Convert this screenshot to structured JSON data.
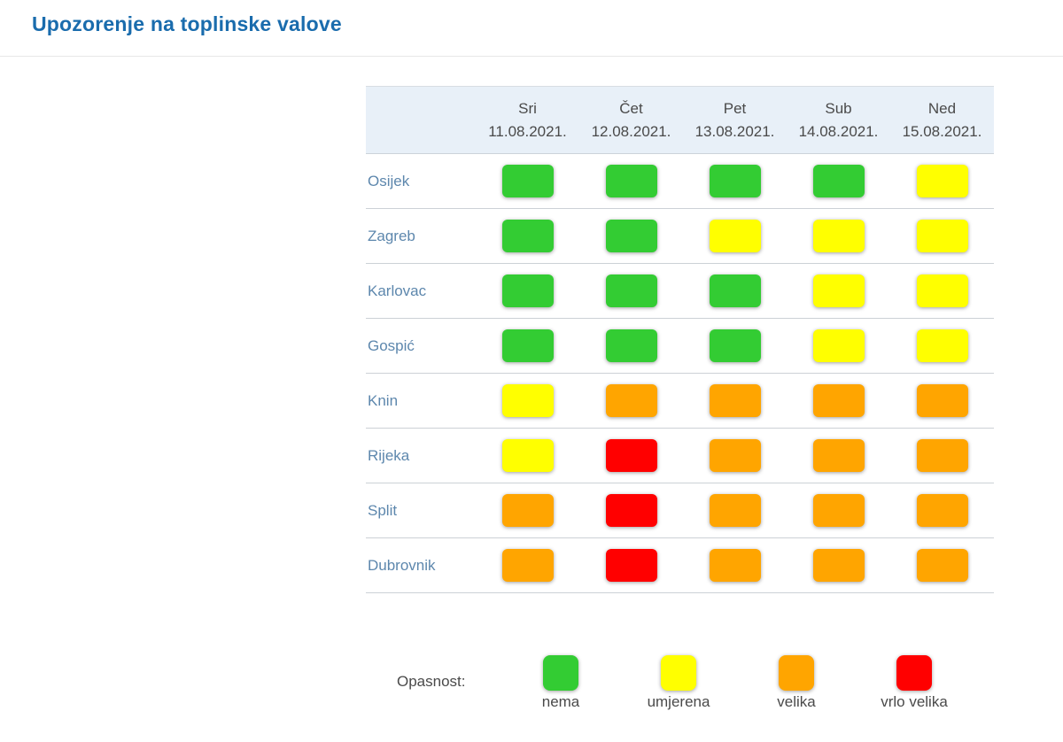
{
  "page": {
    "title": "Upozorenje na toplinske valove"
  },
  "colors": {
    "title_blue": "#1a6cad",
    "header_background": "#e8f0f8",
    "city_link_blue": "#5d87ad",
    "nema": "#33cc33",
    "umjerena": "#ffff00",
    "velika": "#ffa500",
    "vrlo_velika": "#ff0000"
  },
  "table": {
    "days": [
      {
        "name": "Sri",
        "date": "11.08.2021."
      },
      {
        "name": "Čet",
        "date": "12.08.2021."
      },
      {
        "name": "Pet",
        "date": "13.08.2021."
      },
      {
        "name": "Sub",
        "date": "14.08.2021."
      },
      {
        "name": "Ned",
        "date": "15.08.2021."
      }
    ],
    "rows": [
      {
        "city": "Osijek",
        "levels": [
          "nema",
          "nema",
          "nema",
          "nema",
          "umjerena"
        ]
      },
      {
        "city": "Zagreb",
        "levels": [
          "nema",
          "nema",
          "umjerena",
          "umjerena",
          "umjerena"
        ]
      },
      {
        "city": "Karlovac",
        "levels": [
          "nema",
          "nema",
          "nema",
          "umjerena",
          "umjerena"
        ]
      },
      {
        "city": "Gospić",
        "levels": [
          "nema",
          "nema",
          "nema",
          "umjerena",
          "umjerena"
        ]
      },
      {
        "city": "Knin",
        "levels": [
          "umjerena",
          "velika",
          "velika",
          "velika",
          "velika"
        ]
      },
      {
        "city": "Rijeka",
        "levels": [
          "umjerena",
          "vrlo velika",
          "velika",
          "velika",
          "velika"
        ]
      },
      {
        "city": "Split",
        "levels": [
          "velika",
          "vrlo velika",
          "velika",
          "velika",
          "velika"
        ]
      },
      {
        "city": "Dubrovnik",
        "levels": [
          "velika",
          "vrlo velika",
          "velika",
          "velika",
          "velika"
        ]
      }
    ]
  },
  "legend": {
    "label": "Opasnost:",
    "items": [
      {
        "label": "nema",
        "level": "nema"
      },
      {
        "label": "umjerena",
        "level": "umjerena"
      },
      {
        "label": "velika",
        "level": "velika"
      },
      {
        "label": "vrlo velika",
        "level": "vrlo velika"
      }
    ]
  },
  "chart_data": {
    "type": "heatmap",
    "title": "Upozorenje na toplinske valove",
    "x": [
      "Sri 11.08.2021.",
      "Čet 12.08.2021.",
      "Pet 13.08.2021.",
      "Sub 14.08.2021.",
      "Ned 15.08.2021."
    ],
    "y": [
      "Osijek",
      "Zagreb",
      "Karlovac",
      "Gospić",
      "Knin",
      "Rijeka",
      "Split",
      "Dubrovnik"
    ],
    "values": [
      [
        "nema",
        "nema",
        "nema",
        "nema",
        "umjerena"
      ],
      [
        "nema",
        "nema",
        "umjerena",
        "umjerena",
        "umjerena"
      ],
      [
        "nema",
        "nema",
        "nema",
        "umjerena",
        "umjerena"
      ],
      [
        "nema",
        "nema",
        "nema",
        "umjerena",
        "umjerena"
      ],
      [
        "umjerena",
        "velika",
        "velika",
        "velika",
        "velika"
      ],
      [
        "umjerena",
        "vrlo velika",
        "velika",
        "velika",
        "velika"
      ],
      [
        "velika",
        "vrlo velika",
        "velika",
        "velika",
        "velika"
      ],
      [
        "velika",
        "vrlo velika",
        "velika",
        "velika",
        "velika"
      ]
    ],
    "value_scale": [
      "nema",
      "umjerena",
      "velika",
      "vrlo velika"
    ],
    "value_colors": {
      "nema": "#33cc33",
      "umjerena": "#ffff00",
      "velika": "#ffa500",
      "vrlo velika": "#ff0000"
    },
    "legend_label": "Opasnost:",
    "legend_position": "bottom",
    "grid": false
  }
}
